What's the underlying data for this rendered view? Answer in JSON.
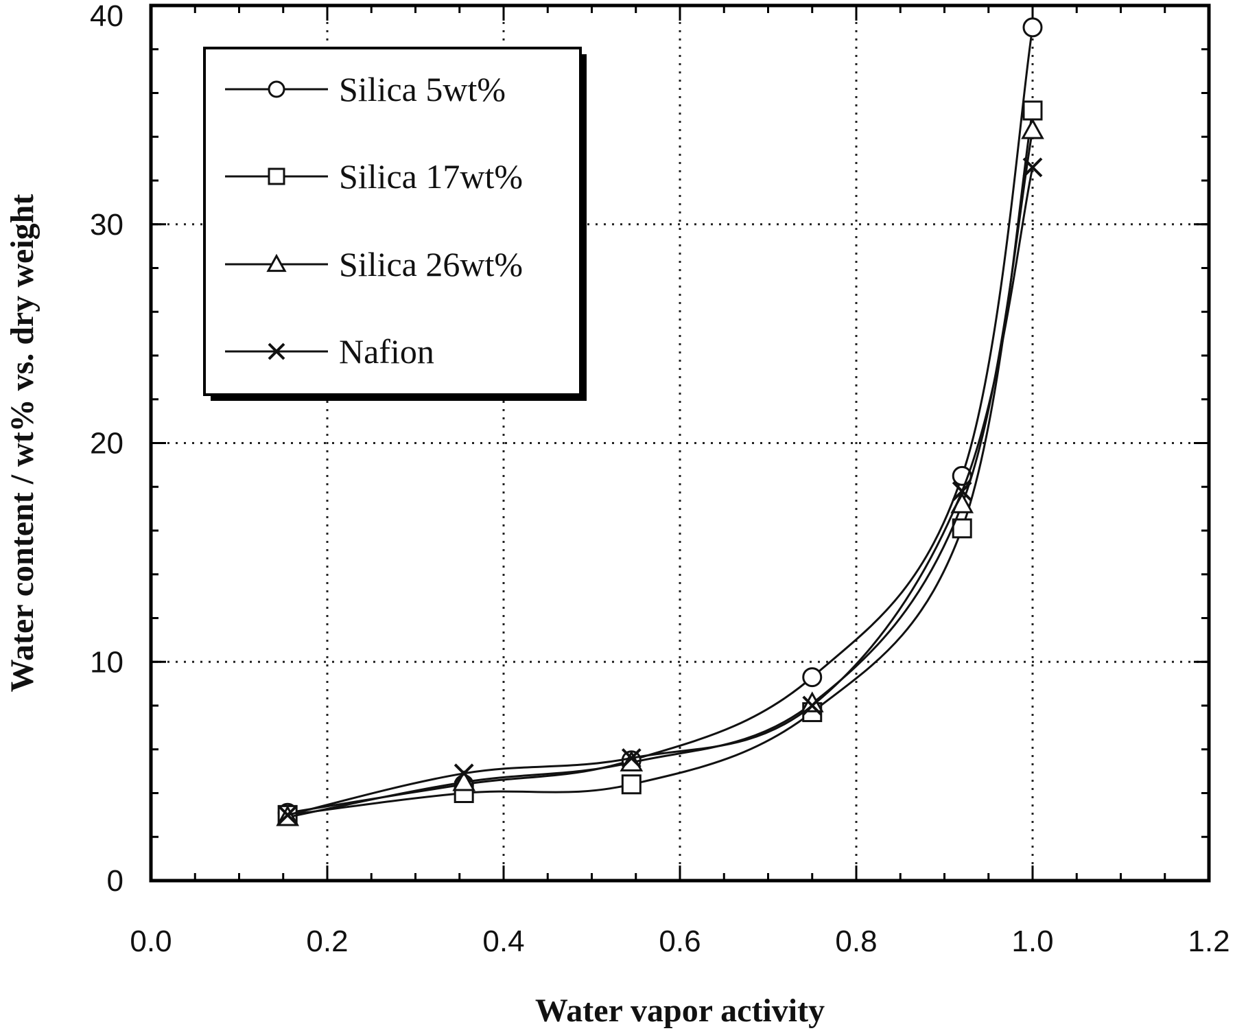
{
  "chart_data": {
    "type": "line",
    "title": "",
    "xlabel": "Water vapor activity",
    "ylabel": "Water content / wt% vs. dry weight",
    "xlim": [
      0.0,
      1.2
    ],
    "ylim": [
      0,
      40
    ],
    "x_ticks": [
      "0.0",
      "0.2",
      "0.4",
      "0.6",
      "0.8",
      "1.0",
      "1.2"
    ],
    "y_ticks": [
      "0",
      "10",
      "20",
      "30",
      "40"
    ],
    "grid": true,
    "legend_position": "top-left",
    "series": [
      {
        "name": "Silica 5wt%",
        "marker": "circle",
        "x": [
          0.155,
          0.355,
          0.545,
          0.75,
          0.92,
          1.0
        ],
        "y": [
          3.1,
          4.4,
          5.5,
          9.3,
          18.5,
          39.0
        ]
      },
      {
        "name": "Silica 17wt%",
        "marker": "square",
        "x": [
          0.155,
          0.355,
          0.545,
          0.75,
          0.92,
          1.0
        ],
        "y": [
          3.0,
          4.0,
          4.4,
          7.7,
          16.1,
          35.2
        ]
      },
      {
        "name": "Silica 26wt%",
        "marker": "triangle",
        "x": [
          0.155,
          0.355,
          0.545,
          0.75,
          0.92,
          1.0
        ],
        "y": [
          2.9,
          4.5,
          5.4,
          8.1,
          17.2,
          34.3
        ]
      },
      {
        "name": "Nafion",
        "marker": "x",
        "x": [
          0.155,
          0.355,
          0.545,
          0.75,
          0.92,
          1.0
        ],
        "y": [
          3.0,
          4.9,
          5.6,
          8.0,
          17.8,
          32.6
        ]
      }
    ]
  }
}
